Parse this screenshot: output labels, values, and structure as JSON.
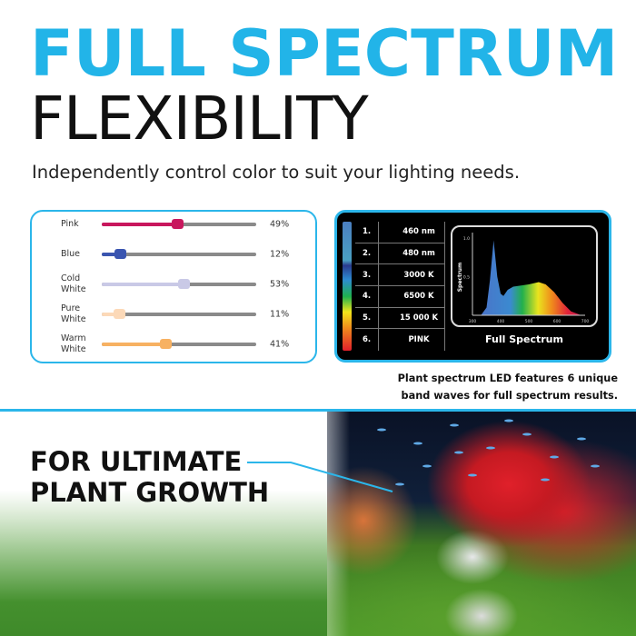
{
  "headline": {
    "line1": "FULL SPECTRUM",
    "line2": "FLEXIBILITY",
    "subtitle": "Independently control color to suit your lighting needs."
  },
  "sliders": [
    {
      "label": "Pink",
      "value": 49,
      "display": "49%",
      "color": "#c8175d"
    },
    {
      "label": "Blue",
      "value": 12,
      "display": "12%",
      "color": "#3a55b0"
    },
    {
      "label": "Cold White",
      "value": 53,
      "display": "53%",
      "color": "#c9c9e6"
    },
    {
      "label": "Pure White",
      "value": 11,
      "display": "11%",
      "color": "#fcd9b8"
    },
    {
      "label": "Warm White",
      "value": 41,
      "display": "41%",
      "color": "#f7b162"
    }
  ],
  "bands": [
    {
      "num": "1.",
      "value": "460 nm"
    },
    {
      "num": "2.",
      "value": "480 nm"
    },
    {
      "num": "3.",
      "value": "3000 K"
    },
    {
      "num": "4.",
      "value": "6500 K"
    },
    {
      "num": "5.",
      "value": "15 000 K"
    },
    {
      "num": "6.",
      "value": "PINK"
    }
  ],
  "chart_data": {
    "type": "area",
    "title": "Full Spectrum",
    "xlabel": "",
    "ylabel": "Spectrum",
    "xlim": [
      300,
      700
    ],
    "ylim": [
      0,
      1.0
    ],
    "x_ticks": [
      "300",
      "400",
      "500",
      "600",
      "700"
    ],
    "y_ticks": [
      "0.5",
      "1.0"
    ],
    "x": [
      330,
      350,
      362,
      375,
      388,
      400,
      410,
      425,
      445,
      500,
      535,
      560,
      590,
      620,
      650,
      680
    ],
    "y": [
      0,
      0.1,
      0.45,
      0.97,
      0.5,
      0.28,
      0.25,
      0.33,
      0.37,
      0.4,
      0.43,
      0.4,
      0.3,
      0.16,
      0.05,
      0.01
    ],
    "grid": false
  },
  "caption": {
    "line1": "Plant spectrum LED features 6 unique",
    "line2": "band waves for full spectrum results."
  },
  "tagline": {
    "line1": "FOR ULTIMATE",
    "line2": "PLANT GROWTH"
  },
  "colors": {
    "accent": "#22b4e8"
  }
}
